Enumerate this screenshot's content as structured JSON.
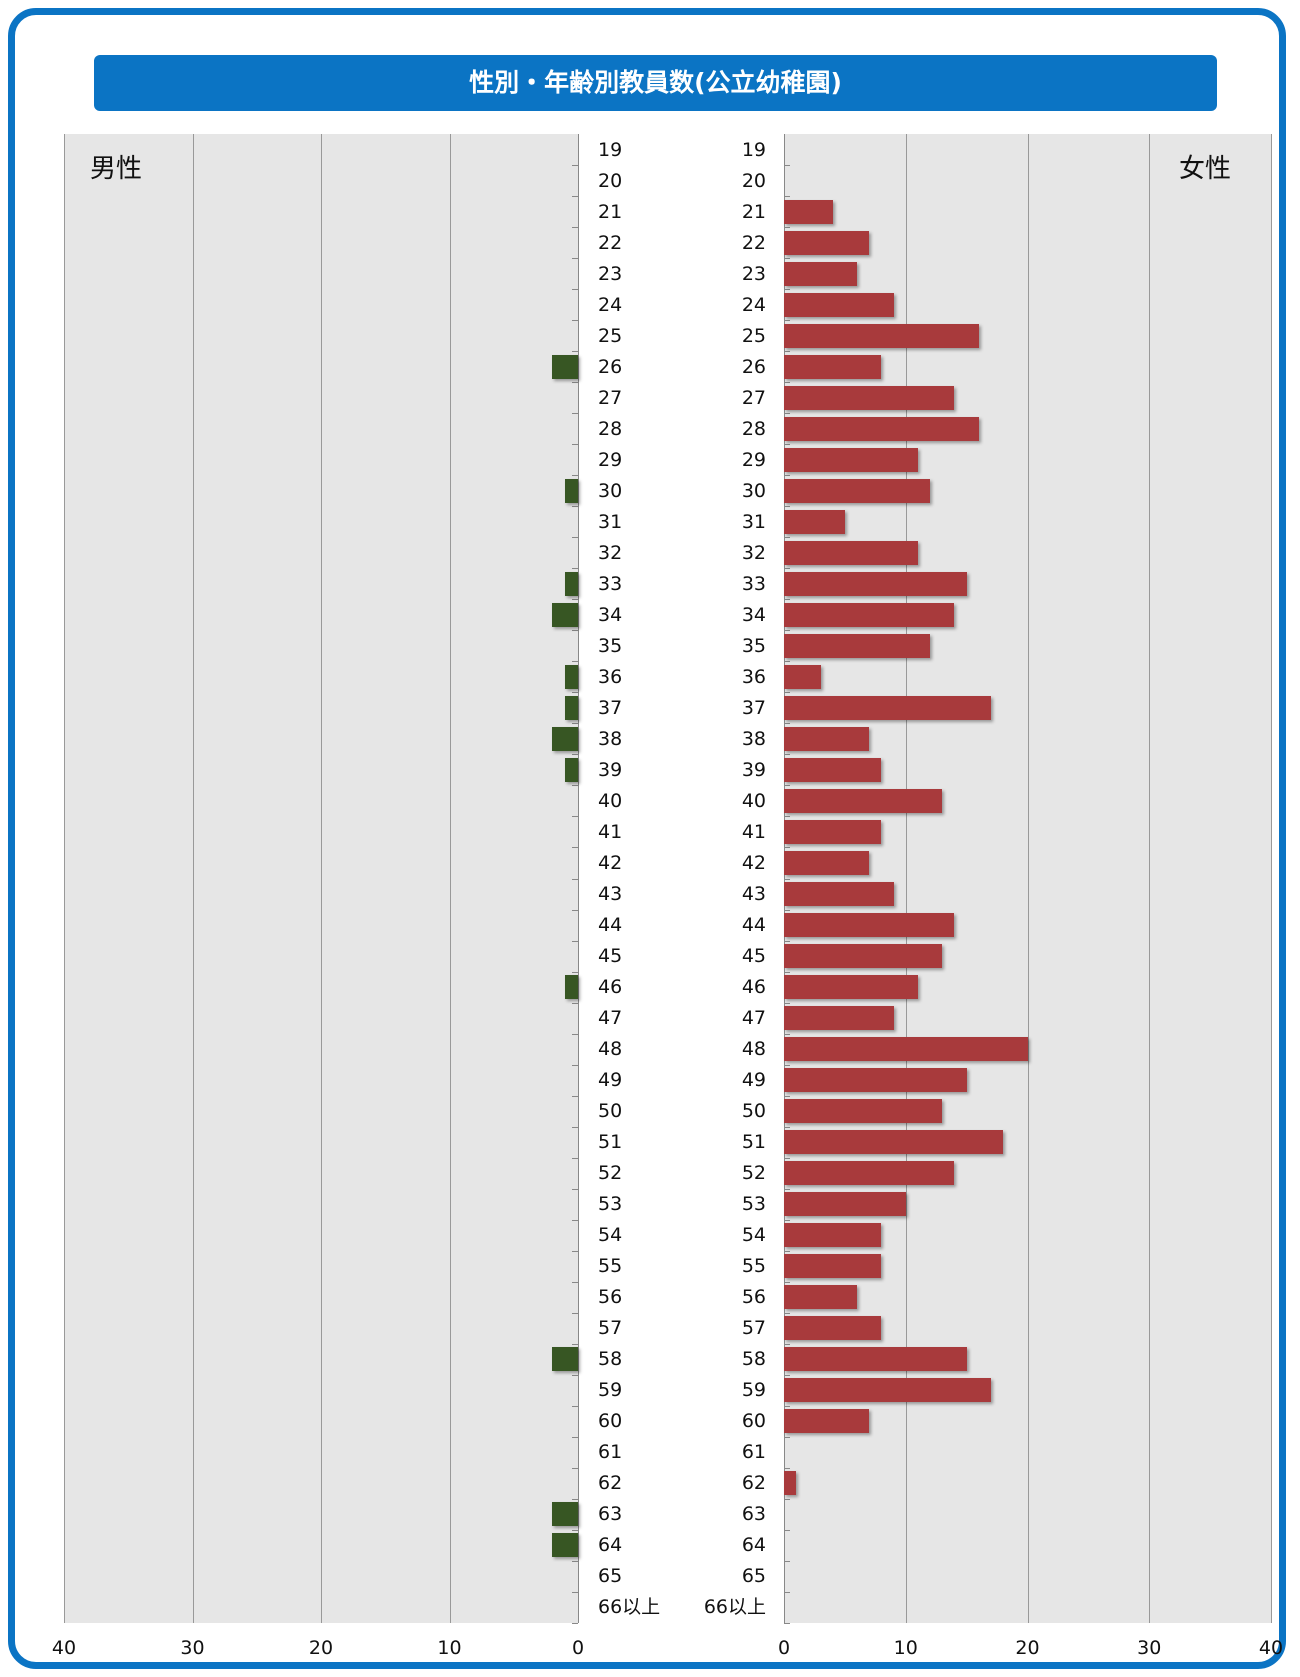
{
  "title": "性別・年齢別教員数(公立幼稚園)",
  "labels": {
    "male": "男性",
    "female": "女性"
  },
  "colors": {
    "frame": "#0b74c4",
    "male_bar": "#375623",
    "female_bar": "#a83a3c",
    "plot_bg": "#e6e6e6"
  },
  "chart_data": {
    "type": "bar",
    "orientation": "horizontal",
    "layout": "population-pyramid",
    "title": "性別・年齢別教員数(公立幼稚園)",
    "categories": [
      "19",
      "20",
      "21",
      "22",
      "23",
      "24",
      "25",
      "26",
      "27",
      "28",
      "29",
      "30",
      "31",
      "32",
      "33",
      "34",
      "35",
      "36",
      "37",
      "38",
      "39",
      "40",
      "41",
      "42",
      "43",
      "44",
      "45",
      "46",
      "47",
      "48",
      "49",
      "50",
      "51",
      "52",
      "53",
      "54",
      "55",
      "56",
      "57",
      "58",
      "59",
      "60",
      "61",
      "62",
      "63",
      "64",
      "65",
      "66以上"
    ],
    "series": [
      {
        "name": "男性",
        "values": [
          0,
          0,
          0,
          0,
          0,
          0,
          0,
          2,
          0,
          0,
          0,
          1,
          0,
          0,
          1,
          2,
          0,
          1,
          1,
          2,
          1,
          0,
          0,
          0,
          0,
          0,
          0,
          1,
          0,
          0,
          0,
          0,
          0,
          0,
          0,
          0,
          0,
          0,
          0,
          2,
          0,
          0,
          0,
          0,
          2,
          2,
          0,
          0
        ]
      },
      {
        "name": "女性",
        "values": [
          0,
          0,
          4,
          7,
          6,
          9,
          16,
          8,
          14,
          16,
          11,
          12,
          5,
          11,
          15,
          14,
          12,
          3,
          17,
          7,
          8,
          13,
          8,
          7,
          9,
          14,
          13,
          11,
          9,
          20,
          15,
          13,
          18,
          14,
          10,
          8,
          8,
          6,
          8,
          15,
          17,
          7,
          0,
          1,
          0,
          0,
          0,
          0
        ]
      }
    ],
    "x_ticks": [
      "40",
      "30",
      "20",
      "10",
      "0",
      "0",
      "10",
      "20",
      "30",
      "40"
    ],
    "xlim": [
      0,
      40
    ],
    "grid": true
  }
}
